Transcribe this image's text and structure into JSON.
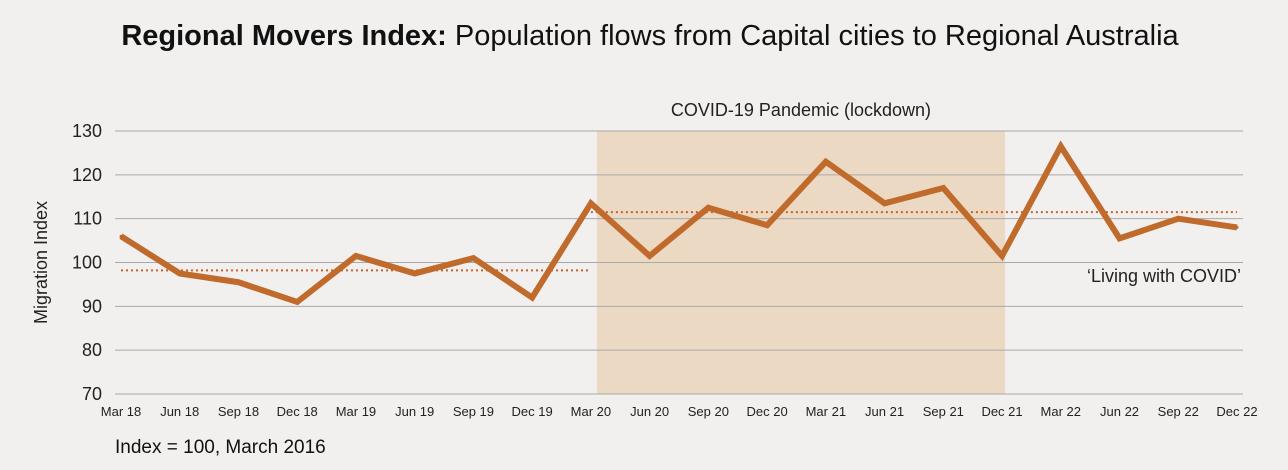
{
  "title_bold": "Regional Movers Index:",
  "title_rest": " Population flows from Capital cities to Regional Australia",
  "footnote": "Index = 100, March 2016",
  "colors": {
    "line": "#c06a2b",
    "shade": "#ecd9c4",
    "grid": "#a9a9a9",
    "dotted": "#c8622a"
  },
  "chart_data": {
    "type": "line",
    "title": "Regional Movers Index: Population flows from Capital cities to Regional Australia",
    "ylabel": "Migration Index",
    "xlabel": "",
    "ylim": [
      70,
      130
    ],
    "yticks": [
      70,
      80,
      90,
      100,
      110,
      120,
      130
    ],
    "grid": true,
    "categories": [
      "Mar 18",
      "Jun 18",
      "Sep 18",
      "Dec 18",
      "Mar 19",
      "Jun 19",
      "Sep 19",
      "Dec 19",
      "Mar 20",
      "Jun 20",
      "Sep 20",
      "Dec 20",
      "Mar 21",
      "Jun 21",
      "Sep 21",
      "Dec 21",
      "Mar 22",
      "Jun 22",
      "Sep 22",
      "Dec 22"
    ],
    "series": [
      {
        "values": [
          106.0,
          97.5,
          95.5,
          91.0,
          101.5,
          97.5,
          101.0,
          92.0,
          113.5,
          101.5,
          112.5,
          108.5,
          123.0,
          113.5,
          117.0,
          101.5,
          126.5,
          105.5,
          110.0,
          108.0
        ]
      }
    ],
    "reference_lines": [
      {
        "y": 98.2,
        "from": "Mar 18",
        "to": "Mar 20"
      },
      {
        "y": 111.5,
        "from": "Mar 20",
        "to": "Dec 22"
      }
    ],
    "shaded_region": {
      "from": "Mar 20",
      "to": "Dec 21",
      "label": "COVID-19 Pandemic (lockdown)"
    },
    "annotations": [
      {
        "text": "‘Living with COVID’",
        "near": "Dec 22"
      }
    ]
  }
}
